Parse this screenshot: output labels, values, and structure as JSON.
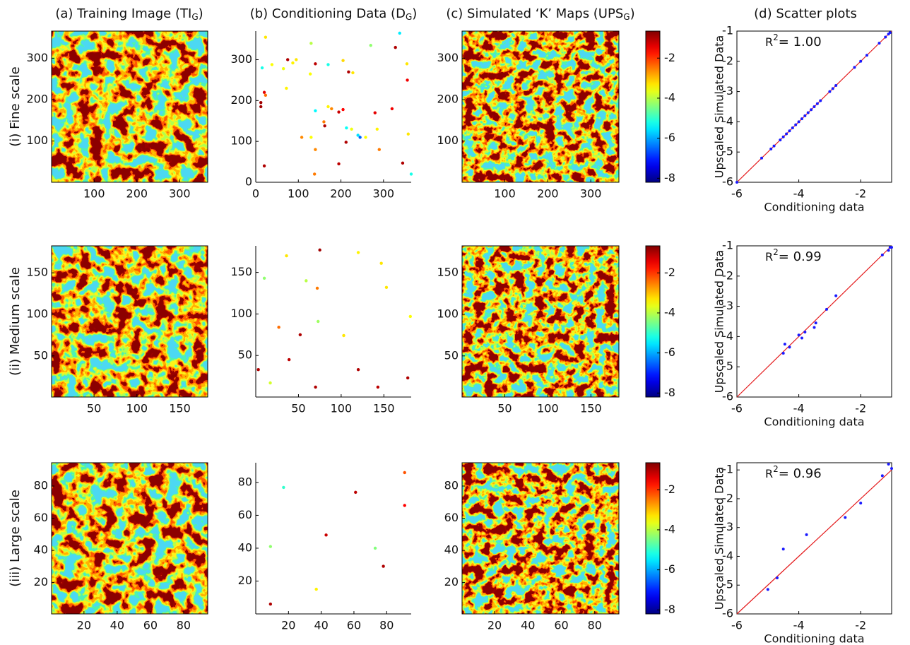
{
  "column_titles": [
    {
      "text": "(a) Training Image (TI",
      "sub": "G",
      "end": ")"
    },
    {
      "text": "(b) Conditioning Data (D",
      "sub": "G",
      "end": ")"
    },
    {
      "text": "(c) Simulated ‘K’ Maps (UPS",
      "sub": "G",
      "end": ")"
    },
    {
      "text": "(d) Scatter plots"
    }
  ],
  "row_labels": [
    "(i) Fine scale",
    "(ii) Medium scale",
    "(iii) Large scale"
  ],
  "chart_data": [
    {
      "type": "image",
      "xlim": [
        0.5,
        365.5
      ],
      "ylim": [
        0.5,
        365.5
      ],
      "xticks": [
        100,
        200,
        300
      ],
      "yticks": [
        100,
        200,
        300
      ]
    },
    {
      "type": "scatter",
      "xlim": [
        0,
        365
      ],
      "ylim": [
        0,
        370
      ],
      "xticks": [
        0,
        100,
        200,
        300
      ],
      "yticks": [
        0,
        100,
        200,
        300
      ],
      "x": [
        23,
        15,
        38,
        65,
        75,
        87,
        95,
        130,
        140,
        128,
        170,
        205,
        218,
        228,
        270,
        328,
        338,
        355,
        356,
        12,
        12,
        20,
        23,
        72,
        140,
        162,
        160,
        170,
        178,
        195,
        205,
        213,
        225,
        240,
        245,
        258,
        280,
        320,
        285,
        212,
        108,
        130,
        140,
        138,
        195,
        290,
        345,
        358,
        365,
        20
      ],
      "y": [
        355,
        280,
        288,
        278,
        300,
        292,
        300,
        340,
        290,
        265,
        288,
        298,
        270,
        268,
        335,
        330,
        365,
        290,
        250,
        195,
        185,
        220,
        213,
        230,
        175,
        138,
        148,
        185,
        180,
        172,
        178,
        133,
        130,
        115,
        110,
        110,
        170,
        180,
        130,
        98,
        110,
        110,
        80,
        20,
        45,
        80,
        47,
        118,
        20,
        40
      ],
      "values": [
        -3.3,
        -5.2,
        -3.5,
        -3.6,
        -1.0,
        -3.4,
        -3.3,
        -4.0,
        -1.1,
        -3.5,
        -5.2,
        -3.2,
        -1.0,
        -3.3,
        -4.3,
        -1.0,
        -5.5,
        -3.3,
        -1.5,
        -0.9,
        -0.9,
        -1.4,
        -2.4,
        -3.4,
        -5.4,
        -1.0,
        -2.5,
        -3.4,
        -2.6,
        -1.2,
        -1.6,
        -5.3,
        -3.6,
        -5.6,
        -6.5,
        -3.5,
        -1.4,
        -1.5,
        -3.4,
        -1.0,
        -2.6,
        -3.5,
        -2.6,
        -2.5,
        -1.1,
        -2.5,
        -1.0,
        -3.3,
        -5.2,
        -1.0
      ]
    },
    {
      "type": "image",
      "xlim": [
        0.5,
        365.5
      ],
      "ylim": [
        0.5,
        365.5
      ],
      "xticks": [
        100,
        200,
        300
      ],
      "yticks": [
        100,
        200,
        300
      ],
      "colormap": "jet",
      "clim": [
        -8.2,
        -0.65
      ],
      "cticks": [
        -2,
        -4,
        -6,
        -8
      ]
    },
    {
      "type": "scatter",
      "xlim": [
        -6,
        -1
      ],
      "ylim": [
        -6,
        -1
      ],
      "xticks": [
        -6,
        -4,
        -2
      ],
      "yticks": [
        -6,
        -5,
        -4,
        -3,
        -2,
        -1
      ],
      "xlabel": "Conditioning data",
      "ylabel": "Upscaled Simulated Data",
      "annotation": {
        "text": "R",
        "sup": "2",
        "end": "= 1.00"
      },
      "identity_line": true,
      "line_color": "#e41a1c",
      "point_color": "#1a1aff",
      "x": [
        -6,
        -5.2,
        -4.9,
        -4.8,
        -4.6,
        -4.5,
        -4.4,
        -4.3,
        -4.2,
        -4.1,
        -4.0,
        -3.9,
        -3.8,
        -3.7,
        -3.6,
        -3.5,
        -3.4,
        -3.3,
        -3.0,
        -2.9,
        -2.8,
        -2.2,
        -2.0,
        -1.8,
        -1.4,
        -1.2,
        -1.1,
        -1.05
      ],
      "y": [
        -6,
        -5.2,
        -4.9,
        -4.8,
        -4.6,
        -4.5,
        -4.4,
        -4.3,
        -4.2,
        -4.1,
        -4.0,
        -3.9,
        -3.8,
        -3.7,
        -3.6,
        -3.5,
        -3.4,
        -3.3,
        -3.0,
        -2.9,
        -2.8,
        -2.2,
        -2.0,
        -1.8,
        -1.4,
        -1.2,
        -1.1,
        -1.05
      ]
    },
    {
      "type": "image",
      "xlim": [
        0.5,
        182.5
      ],
      "ylim": [
        0.5,
        182.5
      ],
      "xticks": [
        50,
        100,
        150
      ],
      "yticks": [
        50,
        100,
        150
      ]
    },
    {
      "type": "scatter",
      "xlim": [
        0,
        182
      ],
      "ylim": [
        0,
        182
      ],
      "xticks": [
        50,
        100,
        150
      ],
      "yticks": [
        50,
        100,
        150
      ],
      "x": [
        3,
        10,
        17,
        27,
        36,
        39,
        52,
        59,
        70,
        72,
        73,
        75,
        103,
        120,
        120,
        143,
        147,
        153,
        178,
        181
      ],
      "y": [
        33,
        143,
        17,
        84,
        170,
        45,
        75,
        140,
        12,
        131,
        91,
        177,
        74,
        174,
        33,
        12,
        161,
        132,
        23,
        97
      ],
      "values": [
        -1.0,
        -4.3,
        -3.8,
        -2.4,
        -3.3,
        -1.1,
        -1.0,
        -4.0,
        -1.0,
        -2.5,
        -4.2,
        -0.9,
        -3.3,
        -3.4,
        -1.0,
        -1.1,
        -3.3,
        -3.3,
        -1.0,
        -3.5
      ]
    },
    {
      "type": "image",
      "xlim": [
        0.5,
        182.5
      ],
      "ylim": [
        0.5,
        182.5
      ],
      "xticks": [
        50,
        100,
        150
      ],
      "yticks": [
        50,
        100,
        150
      ],
      "colormap": "jet",
      "clim": [
        -8.2,
        -0.65
      ],
      "cticks": [
        -2,
        -4,
        -6,
        -8
      ]
    },
    {
      "type": "scatter",
      "xlim": [
        -6,
        -1
      ],
      "ylim": [
        -6,
        -1
      ],
      "xticks": [
        -6,
        -4,
        -2
      ],
      "yticks": [
        -6,
        -5,
        -4,
        -3,
        -2,
        -1
      ],
      "xlabel": "Conditioning data",
      "ylabel": "Upscaled Simulated Data",
      "annotation": {
        "text": "R",
        "sup": "2",
        "end": "= 0.99"
      },
      "identity_line": true,
      "line_color": "#e41a1c",
      "point_color": "#1a1aff",
      "x": [
        -4.5,
        -4.45,
        -4.3,
        -4.0,
        -3.9,
        -3.8,
        -3.5,
        -3.45,
        -3.1,
        -2.8,
        -1.3,
        -1.1,
        -1.05,
        -1.0
      ],
      "y": [
        -4.55,
        -4.25,
        -4.35,
        -3.95,
        -4.05,
        -3.85,
        -3.7,
        -3.55,
        -3.1,
        -2.65,
        -1.3,
        -1.15,
        -1.05,
        -1.05
      ]
    },
    {
      "type": "image",
      "xlim": [
        0.5,
        94.5
      ],
      "ylim": [
        0.5,
        94.5
      ],
      "xticks": [
        20,
        40,
        60,
        80
      ],
      "yticks": [
        20,
        40,
        60,
        80
      ]
    },
    {
      "type": "scatter",
      "xlim": [
        0,
        95
      ],
      "ylim": [
        0,
        92
      ],
      "xticks": [
        20,
        40,
        60,
        80
      ],
      "yticks": [
        20,
        40,
        60,
        80
      ],
      "x": [
        9,
        9,
        17,
        37,
        43,
        61,
        73,
        78,
        91,
        91
      ],
      "y": [
        6,
        41,
        77,
        15,
        48,
        74,
        40,
        29,
        86,
        66
      ],
      "values": [
        -1.0,
        -4.3,
        -5.0,
        -3.4,
        -1.2,
        -1.1,
        -4.4,
        -1.0,
        -2.2,
        -1.6
      ]
    },
    {
      "type": "image",
      "xlim": [
        0.5,
        94.5
      ],
      "ylim": [
        0.5,
        94.5
      ],
      "xticks": [
        20,
        40,
        60,
        80
      ],
      "yticks": [
        20,
        40,
        60,
        80
      ],
      "colormap": "jet",
      "clim": [
        -8.2,
        -0.65
      ],
      "cticks": [
        -2,
        -4,
        -6,
        -8
      ]
    },
    {
      "type": "scatter",
      "xlim": [
        -6,
        -1
      ],
      "ylim": [
        -6,
        -0.75
      ],
      "xticks": [
        -6,
        -4,
        -2
      ],
      "yticks": [
        -6,
        -5,
        -4,
        -3,
        -2,
        -1
      ],
      "xlabel": "Conditioning data",
      "ylabel": "Upscaled Simulated Data",
      "annotation": {
        "text": "R",
        "sup": "2",
        "end": "= 0.96"
      },
      "identity_line": true,
      "line_color": "#e41a1c",
      "point_color": "#1a1aff",
      "x": [
        -5.0,
        -4.7,
        -4.5,
        -3.75,
        -2.5,
        -2.0,
        -1.3,
        -1.1,
        -1.0
      ],
      "y": [
        -5.15,
        -4.75,
        -3.75,
        -3.25,
        -2.65,
        -2.15,
        -1.2,
        -0.8,
        -0.95
      ]
    }
  ]
}
